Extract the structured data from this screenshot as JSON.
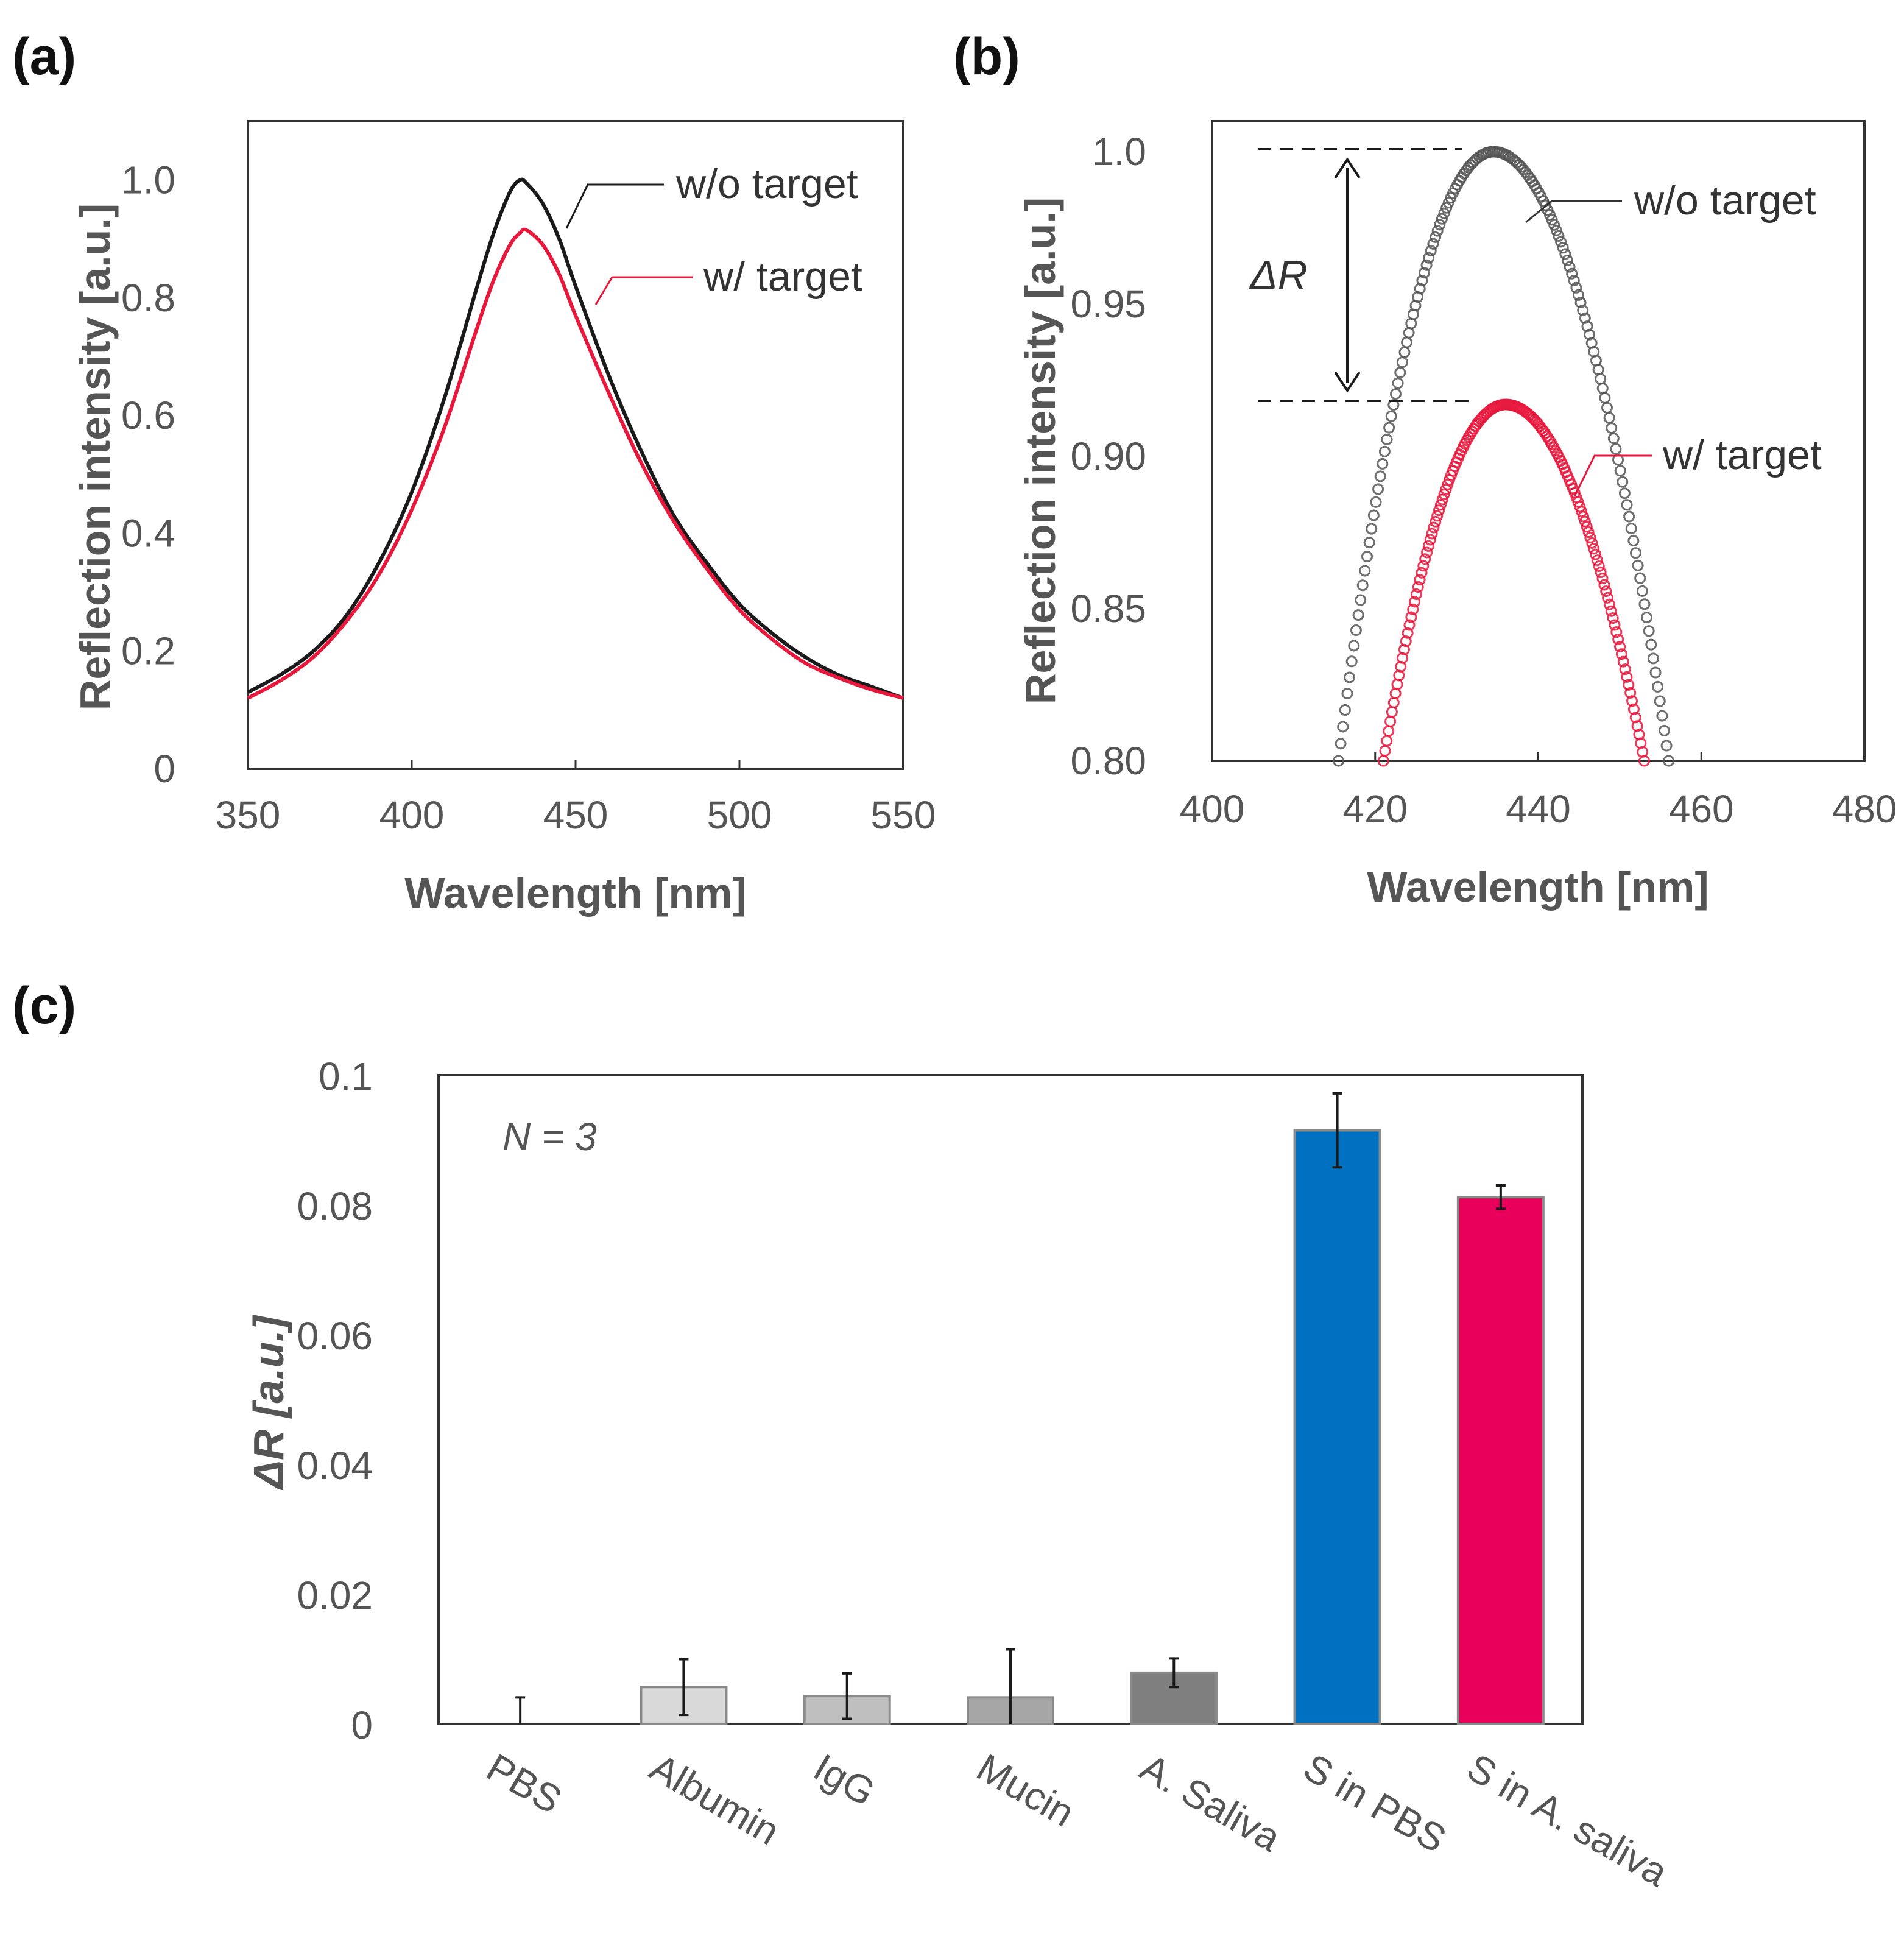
{
  "chart_data": [
    {
      "panel_label": "(a)",
      "type": "line",
      "xlabel": "Wavelength [nm]",
      "ylabel": "Reflection intensity [a.u.]",
      "xlim": [
        350,
        550
      ],
      "ylim": [
        0,
        1.1
      ],
      "xticks": [
        "350",
        "400",
        "450",
        "500",
        "550"
      ],
      "yticks": [
        "0",
        "0.2",
        "0.4",
        "0.6",
        "0.8",
        "1.0"
      ],
      "x": [
        350,
        360,
        370,
        380,
        390,
        400,
        410,
        420,
        425,
        430,
        433,
        435,
        440,
        445,
        450,
        460,
        470,
        480,
        490,
        500,
        510,
        520,
        530,
        540,
        550
      ],
      "series": [
        {
          "name": "w/o target",
          "color": "#1a1a1a",
          "values": [
            0.13,
            0.16,
            0.2,
            0.26,
            0.35,
            0.47,
            0.63,
            0.82,
            0.91,
            0.98,
            1.0,
            0.995,
            0.96,
            0.9,
            0.82,
            0.67,
            0.54,
            0.43,
            0.35,
            0.28,
            0.23,
            0.19,
            0.16,
            0.14,
            0.12
          ]
        },
        {
          "name": "w/ target",
          "color": "#e8183c",
          "values": [
            0.12,
            0.15,
            0.19,
            0.25,
            0.33,
            0.44,
            0.58,
            0.75,
            0.83,
            0.89,
            0.91,
            0.915,
            0.89,
            0.84,
            0.77,
            0.64,
            0.52,
            0.42,
            0.34,
            0.27,
            0.22,
            0.18,
            0.155,
            0.135,
            0.12
          ]
        }
      ],
      "annotations": [
        "w/o target",
        "w/ target"
      ]
    },
    {
      "panel_label": "(b)",
      "type": "scatter",
      "xlabel": "Wavelength [nm]",
      "ylabel": "Reflection intensity [a.u.]",
      "xlim": [
        400,
        480
      ],
      "ylim": [
        0.8,
        1.01
      ],
      "xticks": [
        "400",
        "420",
        "440",
        "460",
        "480"
      ],
      "yticks": [
        "0.80",
        "0.85",
        "0.90",
        "0.95",
        "1.0"
      ],
      "series": [
        {
          "name": "w/o target",
          "color": "#555555",
          "peak_x": 434.5,
          "peak_y": 1.0,
          "x_range": [
            415.5,
            456
          ]
        },
        {
          "name": "w/ target",
          "color": "#e8183c",
          "peak_x": 436,
          "peak_y": 0.917,
          "x_range": [
            421,
            453
          ]
        }
      ],
      "delta_label": "ΔR",
      "annotations": [
        "w/o target",
        "w/ target"
      ]
    },
    {
      "panel_label": "(c)",
      "type": "bar",
      "ylabel": "ΔR [a.u.]",
      "ylim": [
        0,
        0.1
      ],
      "yticks": [
        "0",
        "0.02",
        "0.04",
        "0.06",
        "0.08",
        "0.1"
      ],
      "note": "N = 3",
      "categories": [
        "PBS",
        "Albumin",
        "IgG",
        "Mucin",
        "A. Saliva",
        "S in PBS",
        "S in A. saliva"
      ],
      "values": [
        0.0,
        0.0057,
        0.0043,
        0.0041,
        0.0079,
        0.0915,
        0.0812
      ],
      "errors": [
        0.0041,
        0.0043,
        0.0035,
        0.0074,
        0.0022,
        0.0057,
        0.0018
      ],
      "colors": [
        "#ffffff",
        "#d9d9d9",
        "#bfbfbf",
        "#a6a6a6",
        "#7f7f7f",
        "#0070c0",
        "#e8005a"
      ]
    }
  ]
}
